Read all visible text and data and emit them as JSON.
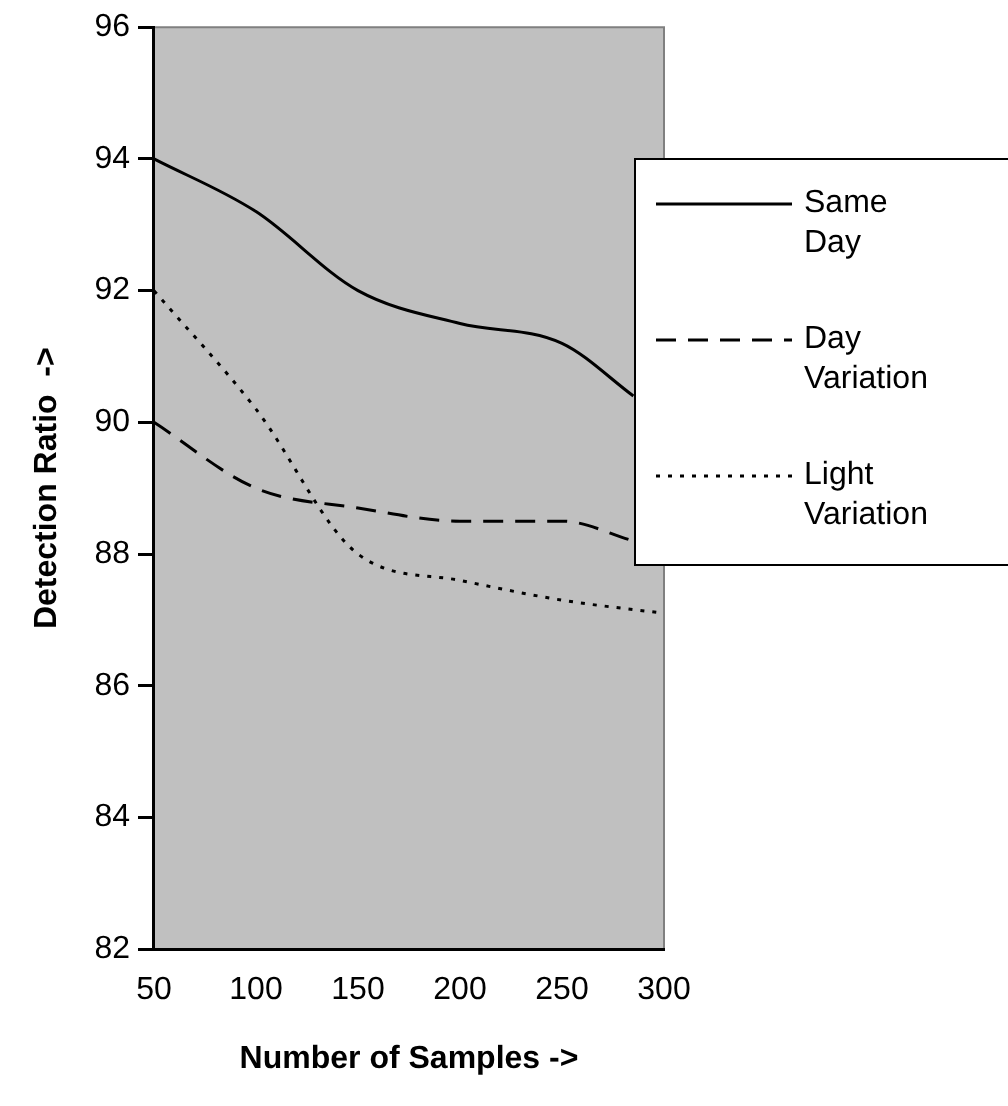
{
  "chart_data": {
    "type": "line",
    "xlabel": "Number of Samples ->",
    "ylabel": "Detection Ratio  ->",
    "x": [
      50,
      100,
      150,
      200,
      250,
      300
    ],
    "series": [
      {
        "name": "Same Day",
        "color": "#000000",
        "line_style": "solid",
        "x": [
          50,
          100,
          150,
          200,
          250,
          285
        ],
        "values": [
          94,
          93.2,
          92.0,
          91.5,
          91.2,
          90.4
        ]
      },
      {
        "name": "Day Variation",
        "color": "#000000",
        "line_style": "dashed",
        "x": [
          50,
          100,
          150,
          200,
          250,
          285
        ],
        "values": [
          90,
          89.0,
          88.7,
          88.5,
          88.5,
          88.2
        ]
      },
      {
        "name": "Light Variation",
        "color": "#000000",
        "line_style": "dotted",
        "values": [
          92,
          90.2,
          88.0,
          87.6,
          87.3,
          87.1
        ]
      }
    ],
    "xlim": [
      50,
      300
    ],
    "xticks": [
      50,
      100,
      150,
      200,
      250,
      300
    ],
    "ylim": [
      82,
      96
    ],
    "yticks": [
      82,
      84,
      86,
      88,
      90,
      92,
      94,
      96
    ],
    "grid": false,
    "legend": "right",
    "marker": "none"
  }
}
